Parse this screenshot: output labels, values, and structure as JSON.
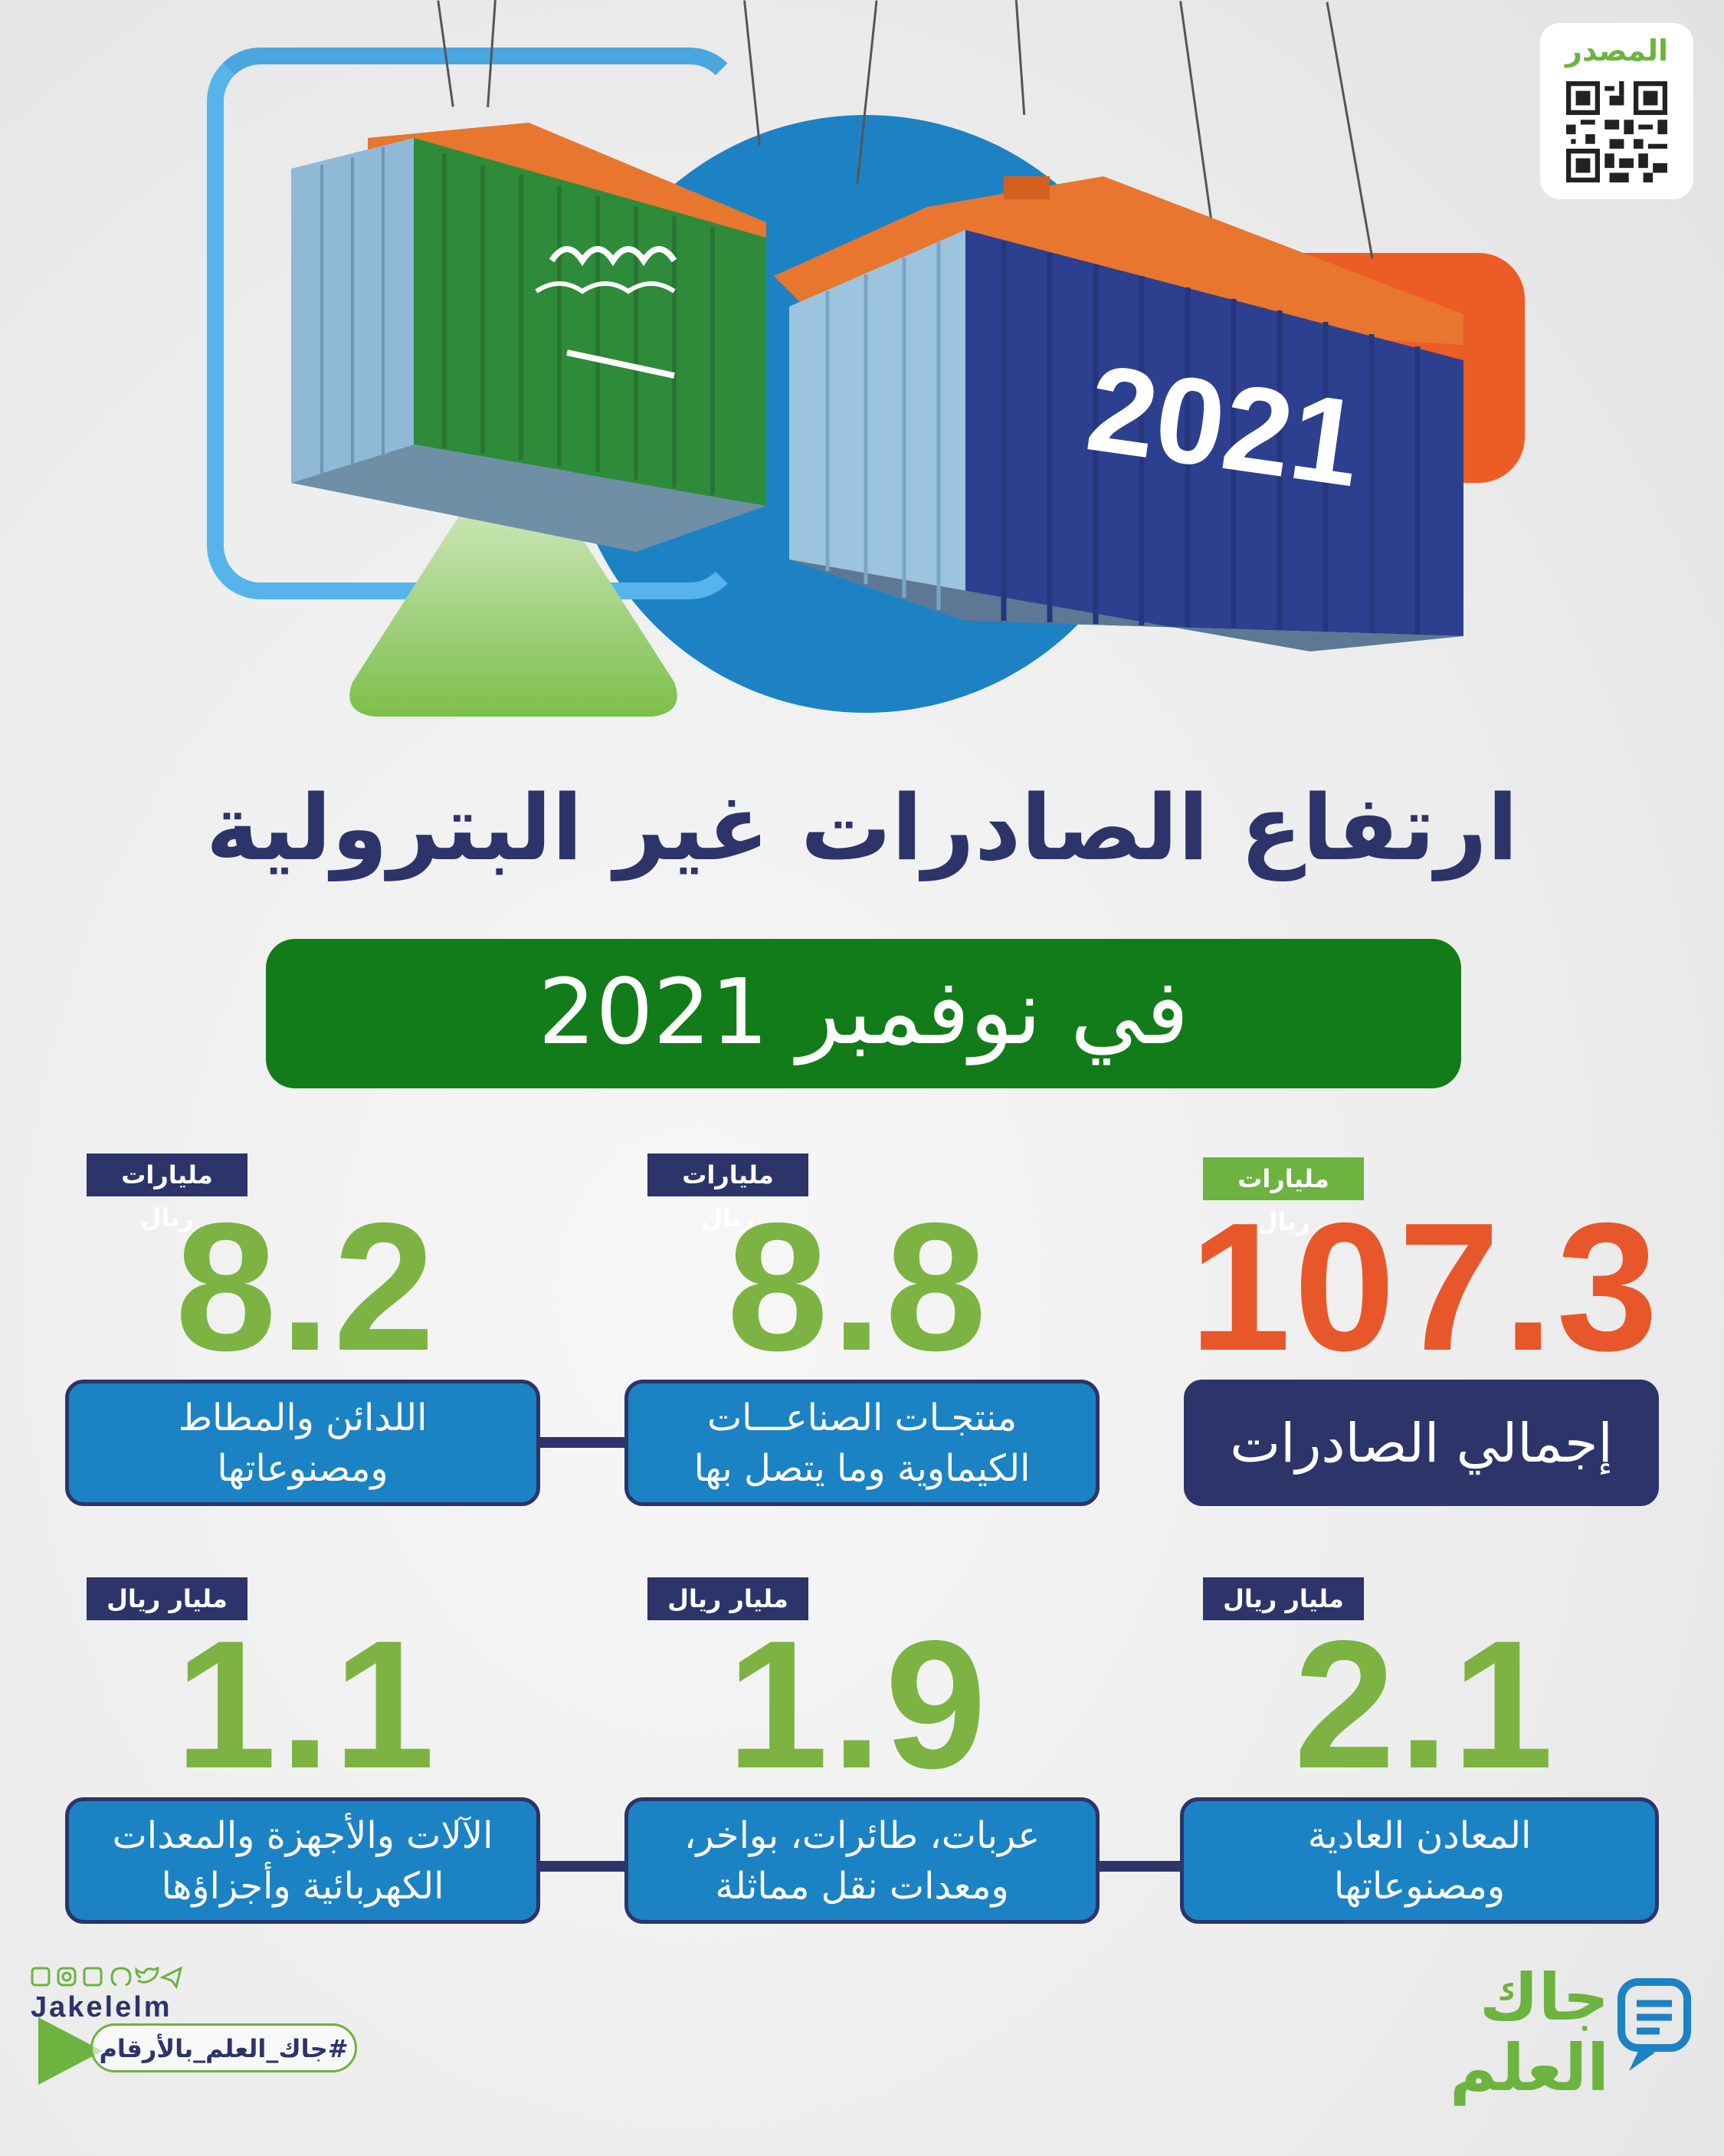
{
  "source": {
    "label": "المصدر"
  },
  "hero": {
    "container_year": "2021"
  },
  "headline": {
    "title": "ارتفاع الصادرات غير البترولية",
    "subtitle": "في نوفمبر 2021"
  },
  "stats_row1": [
    {
      "unit": "مليارات ريال",
      "value": "107.3",
      "label_lines": [
        "إجمالي الصادرات"
      ],
      "highlight": true
    },
    {
      "unit": "مليارات ريال",
      "value": "8.8",
      "label_lines": [
        "منتجـات الصناعـــات",
        "الكيماوية وما يتصل بها"
      ],
      "highlight": false
    },
    {
      "unit": "مليارات ريال",
      "value": "8.2",
      "label_lines": [
        "اللدائن والمطاط",
        "ومصنوعاتها"
      ],
      "highlight": false
    }
  ],
  "stats_row2": [
    {
      "unit": "مليار ريال",
      "value": "2.1",
      "label_lines": [
        "المعادن العادية",
        "ومصنوعاتها"
      ]
    },
    {
      "unit": "مليار ريال",
      "value": "1.9",
      "label_lines": [
        "عربات، طائرات، بواخر،",
        "ومعدات نقل مماثلة"
      ]
    },
    {
      "unit": "مليار ريال",
      "value": "1.1",
      "label_lines": [
        "الآلات والأجهزة والمعدات",
        "الكهربائية وأجزاؤها"
      ]
    }
  ],
  "footer": {
    "handle": "Jakelelm",
    "hashtag": "#جاك_العلم_بالأرقام",
    "brand_line1": "جاك",
    "brand_line2": "العلم"
  },
  "colors": {
    "navy": "#2c3469",
    "blue": "#1b82c4",
    "green": "#6cb33f",
    "dark_green": "#137c1a",
    "orange": "#e8572a"
  }
}
